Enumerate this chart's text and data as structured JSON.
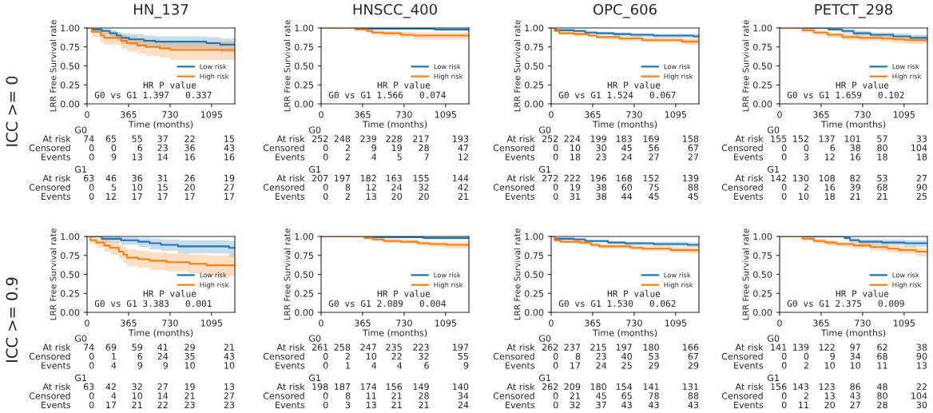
{
  "chart_data": [
    {
      "type": "step",
      "title": "HN_137",
      "xlabel": "Time (months)",
      "ylabel": "LRR Free Survival rate",
      "xlim": [
        0,
        1300
      ],
      "xticks": [
        0,
        365,
        730,
        1095
      ],
      "ylim": [
        0,
        1
      ],
      "yticks": [
        {
          "value": 0,
          "label": "0.00"
        },
        {
          "value": 0.25,
          "label": "0.25"
        },
        {
          "value": 0.5,
          "label": "0.50"
        },
        {
          "value": 0.75,
          "label": "0.75"
        },
        {
          "value": 1,
          "label": "1.00"
        }
      ],
      "legend": "right",
      "series": [
        {
          "name": "Low risk",
          "color": "#1f77b4",
          "x": [
            0,
            45,
            130,
            200,
            260,
            300,
            370,
            500,
            600,
            1050,
            1170,
            1300
          ],
          "values": [
            1,
            0.98,
            0.96,
            0.93,
            0.9,
            0.87,
            0.85,
            0.83,
            0.82,
            0.8,
            0.78,
            0.78
          ],
          "lower": [
            1,
            0.94,
            0.91,
            0.87,
            0.83,
            0.79,
            0.77,
            0.74,
            0.73,
            0.7,
            0.68,
            0.68
          ],
          "upper": [
            1,
            1,
            0.99,
            0.97,
            0.95,
            0.93,
            0.92,
            0.9,
            0.89,
            0.88,
            0.86,
            0.86
          ]
        },
        {
          "name": "High risk",
          "color": "#ff7f0e",
          "x": [
            0,
            40,
            120,
            150,
            300,
            350,
            440,
            520,
            640,
            730,
            1300
          ],
          "values": [
            1,
            0.95,
            0.9,
            0.87,
            0.83,
            0.8,
            0.77,
            0.75,
            0.73,
            0.71,
            0.71
          ],
          "lower": [
            1,
            0.88,
            0.81,
            0.78,
            0.73,
            0.69,
            0.66,
            0.63,
            0.61,
            0.58,
            0.57
          ],
          "upper": [
            1,
            0.99,
            0.96,
            0.94,
            0.91,
            0.89,
            0.86,
            0.85,
            0.83,
            0.82,
            0.82
          ]
        }
      ],
      "annotations": [
        "HR P value",
        "G0 vs G1 1.397   0.337",
        "G0",
        "At risk  74  65  55  37  22  15",
        "Censored  0  0  6  23  36  43",
        "Events  0  9  13  14  16  16",
        "G1",
        "At risk  63  46  36  31  26  19",
        "Censored  0  5  10  15  20  27",
        "Events  0  12  17  17  17  17",
        "ICC >= 0"
      ]
    },
    {
      "type": "step",
      "title": "HNSCC_400",
      "xlabel": "Time (months)",
      "ylabel": "LRR Free Survival rate",
      "xlim": [
        0,
        1300
      ],
      "xticks": [
        0,
        365,
        730,
        1095
      ],
      "ylim": [
        0,
        1
      ],
      "yticks": [
        {
          "value": 0,
          "label": "0.00"
        },
        {
          "value": 0.25,
          "label": "0.25"
        },
        {
          "value": 0.5,
          "label": "0.50"
        },
        {
          "value": 0.75,
          "label": "0.75"
        },
        {
          "value": 1,
          "label": "1.00"
        }
      ],
      "legend": "right",
      "series": [
        {
          "name": "Low risk",
          "color": "#1f77b4",
          "x": [
            0,
            400,
            1000,
            1300
          ],
          "values": [
            1,
            0.99,
            0.98,
            0.97
          ],
          "lower": [
            1,
            0.98,
            0.96,
            0.95
          ],
          "upper": [
            1,
            1,
            0.99,
            0.99
          ]
        },
        {
          "name": "High risk",
          "color": "#ff7f0e",
          "x": [
            0,
            300,
            400,
            450,
            550,
            700,
            820,
            1300
          ],
          "values": [
            1,
            0.98,
            0.96,
            0.94,
            0.93,
            0.91,
            0.9,
            0.9
          ],
          "lower": [
            1,
            0.96,
            0.93,
            0.91,
            0.89,
            0.87,
            0.85,
            0.85
          ],
          "upper": [
            1,
            1,
            0.98,
            0.97,
            0.96,
            0.95,
            0.94,
            0.94
          ]
        }
      ],
      "annotations": [
        "HR P value",
        "G0 vs G1 1.566   0.074",
        "G0",
        "At risk  252  248  239  228  217  193",
        "Censored  0  2  9  19  28  47",
        "Events  0  2  4  5  7  12",
        "G1",
        "At risk  207  197  182  163  155  144",
        "Censored  0  8  12  24  32  42",
        "Events  0  2  13  20  20  21"
      ]
    },
    {
      "type": "step",
      "title": "OPC_606",
      "xlabel": "Time (months)",
      "ylabel": "LRR Free Survival rate",
      "xlim": [
        0,
        1300
      ],
      "xticks": [
        0,
        365,
        730,
        1095
      ],
      "ylim": [
        0,
        1
      ],
      "yticks": [
        {
          "value": 0,
          "label": "0.00"
        },
        {
          "value": 0.25,
          "label": "0.25"
        },
        {
          "value": 0.5,
          "label": "0.50"
        },
        {
          "value": 0.75,
          "label": "0.75"
        },
        {
          "value": 1,
          "label": "1.00"
        }
      ],
      "legend": "right",
      "series": [
        {
          "name": "Low risk",
          "color": "#1f77b4",
          "x": [
            0,
            40,
            200,
            300,
            400,
            550,
            700,
            900,
            1250,
            1300
          ],
          "values": [
            1,
            0.97,
            0.96,
            0.94,
            0.93,
            0.92,
            0.91,
            0.9,
            0.89,
            0.89
          ],
          "lower": [
            1,
            0.95,
            0.94,
            0.92,
            0.91,
            0.89,
            0.88,
            0.87,
            0.86,
            0.86
          ],
          "upper": [
            1,
            0.99,
            0.98,
            0.96,
            0.95,
            0.94,
            0.93,
            0.92,
            0.92,
            0.92
          ]
        },
        {
          "name": "High risk",
          "color": "#ff7f0e",
          "x": [
            0,
            30,
            70,
            200,
            330,
            400,
            600,
            800,
            1150,
            1300
          ],
          "values": [
            1,
            0.96,
            0.93,
            0.92,
            0.9,
            0.88,
            0.86,
            0.84,
            0.82,
            0.82
          ],
          "lower": [
            1,
            0.94,
            0.91,
            0.89,
            0.87,
            0.85,
            0.83,
            0.81,
            0.78,
            0.77
          ],
          "upper": [
            1,
            0.98,
            0.95,
            0.94,
            0.92,
            0.9,
            0.89,
            0.87,
            0.86,
            0.86
          ]
        }
      ],
      "annotations": [
        "HR P value",
        "G0 vs G1 1.524   0.067",
        "G0",
        "At risk  252  224  199  183  169  158",
        "Censored  0  10  30  45  56  67",
        "Events  0  18  23  24  27  27",
        "G1",
        "At risk  272  222  196  168  152  139",
        "Censored  0  19  38  60  75  88",
        "Events  0  31  38  44  45  45"
      ]
    },
    {
      "type": "step",
      "title": "PETCT_298",
      "xlabel": "Time (months)",
      "ylabel": "LRR Free Survival rate",
      "xlim": [
        0,
        1300
      ],
      "xticks": [
        0,
        365,
        730,
        1095
      ],
      "ylim": [
        0,
        1
      ],
      "yticks": [
        {
          "value": 0,
          "label": "0.00"
        },
        {
          "value": 0.25,
          "label": "0.25"
        },
        {
          "value": 0.5,
          "label": "0.50"
        },
        {
          "value": 0.75,
          "label": "0.75"
        },
        {
          "value": 1,
          "label": "1.00"
        }
      ],
      "legend": "right",
      "series": [
        {
          "name": "Low risk",
          "color": "#1f77b4",
          "x": [
            0,
            400,
            430,
            550,
            650,
            800,
            1000,
            1150,
            1300
          ],
          "values": [
            1,
            1,
            0.98,
            0.96,
            0.93,
            0.91,
            0.89,
            0.87,
            0.87
          ],
          "lower": [
            1,
            1,
            0.96,
            0.93,
            0.9,
            0.87,
            0.85,
            0.82,
            0.82
          ],
          "upper": [
            1,
            1,
            1,
            0.98,
            0.96,
            0.94,
            0.93,
            0.91,
            0.91
          ]
        },
        {
          "name": "High risk",
          "color": "#ff7f0e",
          "x": [
            0,
            200,
            300,
            420,
            550,
            700,
            900,
            1000,
            1100,
            1300
          ],
          "values": [
            1,
            0.97,
            0.94,
            0.91,
            0.88,
            0.87,
            0.86,
            0.85,
            0.84,
            0.84
          ],
          "lower": [
            1,
            0.94,
            0.91,
            0.87,
            0.84,
            0.83,
            0.82,
            0.8,
            0.79,
            0.78
          ],
          "upper": [
            1,
            0.99,
            0.97,
            0.94,
            0.92,
            0.91,
            0.9,
            0.89,
            0.89,
            0.89
          ]
        }
      ],
      "annotations": [
        "HR P value",
        "G0 vs G1 1.659   0.102",
        "G0",
        "At risk  155  152  137  101  57  33",
        "Censored  0  0  6  38  80  104",
        "Events  0  3  12  16  18  18",
        "G1",
        "At risk  142  130  108  82  53  27",
        "Censored  0  2  16  39  68  90",
        "Events  0  10  18  21  21  25"
      ]
    },
    {
      "type": "step",
      "xlabel": "Time (months)",
      "ylabel": "LRR Free Survival rate",
      "xlim": [
        0,
        1300
      ],
      "xticks": [
        0,
        365,
        730,
        1095
      ],
      "ylim": [
        0,
        1
      ],
      "yticks": [
        {
          "value": 0,
          "label": "0.00"
        },
        {
          "value": 0.25,
          "label": "0.25"
        },
        {
          "value": 0.5,
          "label": "0.50"
        },
        {
          "value": 0.75,
          "label": "0.75"
        },
        {
          "value": 1,
          "label": "1.00"
        }
      ],
      "legend": "right",
      "series": [
        {
          "name": "Low risk",
          "color": "#1f77b4",
          "x": [
            0,
            130,
            300,
            450,
            550,
            650,
            800,
            1250,
            1300
          ],
          "values": [
            1,
            0.97,
            0.95,
            0.93,
            0.91,
            0.89,
            0.87,
            0.85,
            0.85
          ],
          "lower": [
            1,
            0.92,
            0.89,
            0.86,
            0.83,
            0.81,
            0.78,
            0.73,
            0.73
          ],
          "upper": [
            1,
            1,
            0.99,
            0.98,
            0.97,
            0.96,
            0.95,
            0.94,
            0.94
          ]
        },
        {
          "name": "High risk",
          "color": "#ff7f0e",
          "x": [
            0,
            30,
            80,
            150,
            200,
            280,
            320,
            350,
            450,
            550,
            700,
            900,
            1050,
            1300
          ],
          "values": [
            1,
            0.95,
            0.92,
            0.88,
            0.85,
            0.8,
            0.76,
            0.72,
            0.7,
            0.68,
            0.66,
            0.64,
            0.62,
            0.62
          ],
          "lower": [
            1,
            0.9,
            0.85,
            0.8,
            0.76,
            0.7,
            0.65,
            0.61,
            0.59,
            0.56,
            0.54,
            0.51,
            0.48,
            0.48
          ],
          "upper": [
            1,
            1,
            0.98,
            0.95,
            0.93,
            0.89,
            0.86,
            0.83,
            0.81,
            0.79,
            0.78,
            0.76,
            0.75,
            0.75
          ]
        }
      ],
      "annotations": [
        "HR P value",
        "G0 vs G1 3.383   0.001",
        "G0",
        "At risk  74  69  59  41  29  21",
        "Censored  0  1  6  24  35  43",
        "Events  0  4  9  9  10  10",
        "G1",
        "At risk  63  42  32  27  19  13",
        "Censored  0  4  10  14  21  27",
        "Events  0  17  21  22  23  23",
        "ICC >= 0.9"
      ]
    },
    {
      "type": "step",
      "xlabel": "Time (months)",
      "ylabel": "LRR Free Survival rate",
      "xlim": [
        0,
        1300
      ],
      "xticks": [
        0,
        365,
        730,
        1095
      ],
      "ylim": [
        0,
        1
      ],
      "yticks": [
        {
          "value": 0,
          "label": "0.00"
        },
        {
          "value": 0.25,
          "label": "0.25"
        },
        {
          "value": 0.5,
          "label": "0.50"
        },
        {
          "value": 0.75,
          "label": "0.75"
        },
        {
          "value": 1,
          "label": "1.00"
        }
      ],
      "legend": "right",
      "series": [
        {
          "name": "Low risk",
          "color": "#1f77b4",
          "x": [
            0,
            400,
            900,
            1300
          ],
          "values": [
            1,
            0.99,
            0.98,
            0.98
          ],
          "lower": [
            1,
            0.98,
            0.96,
            0.96
          ],
          "upper": [
            1,
            1,
            0.99,
            0.99
          ]
        },
        {
          "name": "High risk",
          "color": "#ff7f0e",
          "x": [
            0,
            380,
            450,
            550,
            700,
            850,
            950,
            1100,
            1300
          ],
          "values": [
            1,
            0.98,
            0.96,
            0.94,
            0.93,
            0.91,
            0.9,
            0.89,
            0.89
          ],
          "lower": [
            1,
            0.96,
            0.94,
            0.91,
            0.9,
            0.87,
            0.86,
            0.84,
            0.84
          ],
          "upper": [
            1,
            1,
            0.98,
            0.97,
            0.96,
            0.94,
            0.93,
            0.93,
            0.93
          ]
        }
      ],
      "annotations": [
        "HR P value",
        "G0 vs G1 2.089   0.004",
        "G0",
        "At risk  261  258  247  235  223  197",
        "Censored  0  2  10  22  32  55",
        "Events  0  1  4  4  6  9",
        "G1",
        "At risk  198  187  174  156  149  140",
        "Censored  0  8  11  21  28  34",
        "Events  0  3  13  21  21  24"
      ]
    },
    {
      "type": "step",
      "xlabel": "Time (months)",
      "ylabel": "LRR Free Survival rate",
      "xlim": [
        0,
        1300
      ],
      "xticks": [
        0,
        365,
        730,
        1095
      ],
      "ylim": [
        0,
        1
      ],
      "yticks": [
        {
          "value": 0,
          "label": "0.00"
        },
        {
          "value": 0.25,
          "label": "0.25"
        },
        {
          "value": 0.5,
          "label": "0.50"
        },
        {
          "value": 0.75,
          "label": "0.75"
        },
        {
          "value": 1,
          "label": "1.00"
        }
      ],
      "legend": "right",
      "series": [
        {
          "name": "Low risk",
          "color": "#1f77b4",
          "x": [
            0,
            30,
            200,
            300,
            500,
            650,
            900,
            1200,
            1300
          ],
          "values": [
            1,
            0.97,
            0.96,
            0.94,
            0.92,
            0.91,
            0.9,
            0.89,
            0.89
          ],
          "lower": [
            1,
            0.95,
            0.94,
            0.92,
            0.9,
            0.88,
            0.87,
            0.86,
            0.85
          ],
          "upper": [
            1,
            0.99,
            0.98,
            0.96,
            0.94,
            0.93,
            0.93,
            0.92,
            0.92
          ]
        },
        {
          "name": "High risk",
          "color": "#ff7f0e",
          "x": [
            0,
            30,
            80,
            250,
            350,
            420,
            700,
            800,
            1050,
            1300
          ],
          "values": [
            1,
            0.95,
            0.93,
            0.92,
            0.89,
            0.87,
            0.85,
            0.84,
            0.82,
            0.82
          ],
          "lower": [
            1,
            0.93,
            0.91,
            0.89,
            0.86,
            0.84,
            0.82,
            0.81,
            0.78,
            0.77
          ],
          "upper": [
            1,
            0.97,
            0.95,
            0.94,
            0.91,
            0.9,
            0.88,
            0.87,
            0.86,
            0.86
          ]
        }
      ],
      "annotations": [
        "HR P value",
        "G0 vs G1 1.530   0.062",
        "G0",
        "At risk  262  237  215  197  180  166",
        "Censored  0  8  23  40  53  67",
        "Events  0  17  24  25  29  29",
        "G1",
        "At risk  262  209  180  154  141  131",
        "Censored  0  21  45  65  78  88",
        "Events  0  32  37  43  43  43"
      ]
    },
    {
      "type": "step",
      "xlabel": "Time (months)",
      "ylabel": "LRR Free Survival rate",
      "xlim": [
        0,
        1300
      ],
      "xticks": [
        0,
        365,
        730,
        1095
      ],
      "ylim": [
        0,
        1
      ],
      "yticks": [
        {
          "value": 0,
          "label": "0.00"
        },
        {
          "value": 0.25,
          "label": "0.25"
        },
        {
          "value": 0.5,
          "label": "0.50"
        },
        {
          "value": 0.75,
          "label": "0.75"
        },
        {
          "value": 1,
          "label": "1.00"
        }
      ],
      "legend": "right",
      "series": [
        {
          "name": "Low risk",
          "color": "#1f77b4",
          "x": [
            0,
            570,
            620,
            700,
            900,
            1100,
            1300
          ],
          "values": [
            1,
            0.98,
            0.95,
            0.93,
            0.92,
            0.91,
            0.91
          ],
          "lower": [
            1,
            0.96,
            0.92,
            0.89,
            0.88,
            0.86,
            0.86
          ],
          "upper": [
            1,
            1,
            0.98,
            0.96,
            0.96,
            0.95,
            0.95
          ]
        },
        {
          "name": "High risk",
          "color": "#ff7f0e",
          "x": [
            0,
            200,
            300,
            400,
            500,
            650,
            800,
            950,
            1050,
            1200,
            1300
          ],
          "values": [
            1,
            0.97,
            0.94,
            0.92,
            0.9,
            0.88,
            0.86,
            0.84,
            0.82,
            0.8,
            0.8
          ],
          "lower": [
            1,
            0.94,
            0.91,
            0.88,
            0.86,
            0.84,
            0.81,
            0.79,
            0.77,
            0.74,
            0.73
          ],
          "upper": [
            1,
            0.99,
            0.97,
            0.95,
            0.93,
            0.92,
            0.9,
            0.88,
            0.87,
            0.85,
            0.85
          ]
        }
      ],
      "annotations": [
        "HR P value",
        "G0 vs G1 2.375   0.009",
        "G0",
        "At risk  141  139  122  97  62  38",
        "Censored  0  0  9  34  68  90",
        "Events  0  2  10  10  11  13",
        "G1",
        "At risk  156  143  123  86  48  22",
        "Censored  0  2  13  43  80  104",
        "Events  0  11  20  27  28  30"
      ]
    }
  ]
}
